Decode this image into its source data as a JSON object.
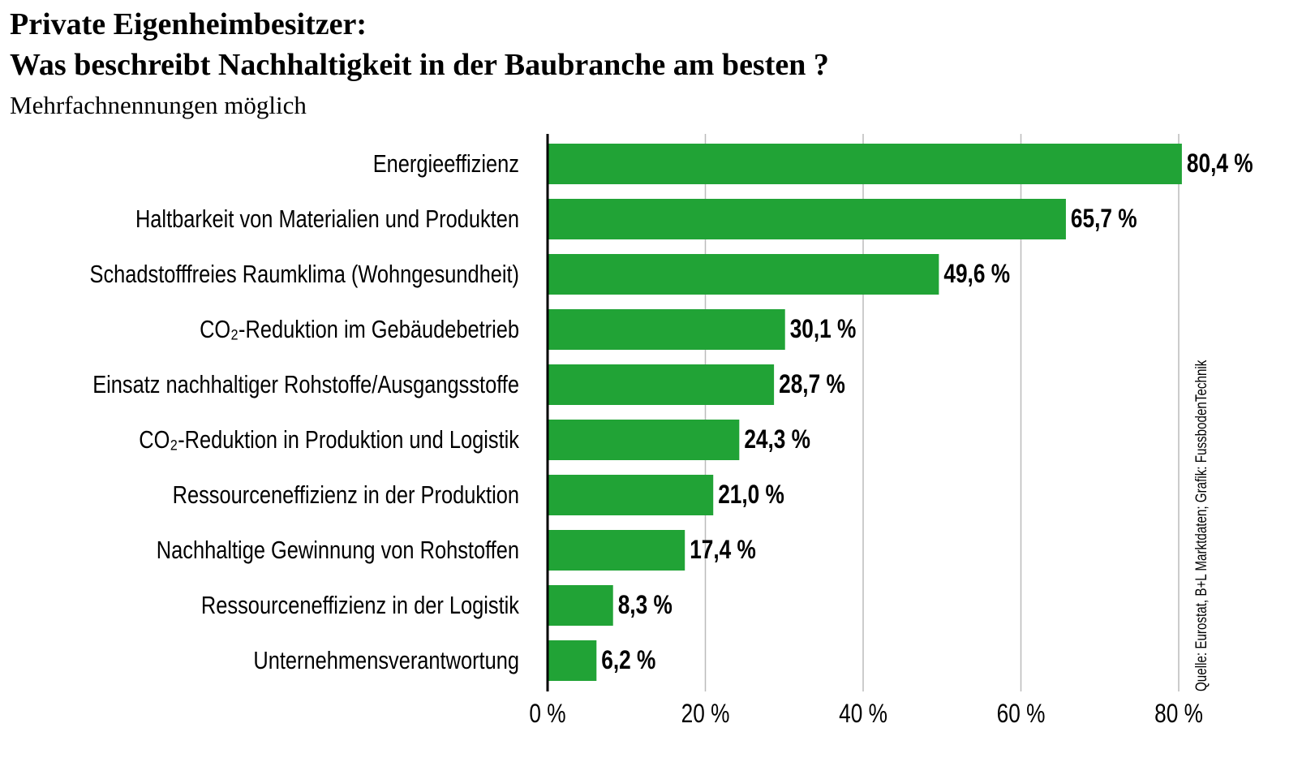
{
  "chart_data": {
    "type": "bar",
    "orientation": "horizontal",
    "title": [
      "Private Eigenheimbesitzer:",
      "Was beschreibt Nachhaltigkeit in der Baubranche am besten ?"
    ],
    "subtitle": "Mehrfachnennungen möglich",
    "source": "Quelle: Eurostat, B+L Marktdaten; Grafik: FussbodenTechnik",
    "categories": [
      "Energieeffizienz",
      "Haltbarkeit von Materialien und Produkten",
      "Schadstofffreies Raumklima (Wohngesundheit)",
      "CO₂-Reduktion im Gebäudebetrieb",
      "Einsatz nachhaltiger Rohstoffe/Ausgangsstoffe",
      "CO₂-Reduktion in Produktion und Logistik",
      "Ressourceneffizienz in der Produktion",
      "Nachhaltige Gewinnung von Rohstoffen",
      "Ressourceneffizienz in der Logistik",
      "Unternehmensverantwortung"
    ],
    "values": [
      80.4,
      65.7,
      49.6,
      30.1,
      28.7,
      24.3,
      21.0,
      17.4,
      8.3,
      6.2
    ],
    "value_labels": [
      "80,4 %",
      "65,7 %",
      "49,6 %",
      "30,1 %",
      "28,7 %",
      "24,3 %",
      "21,0 %",
      "17,4 %",
      "8,3 %",
      "6,2 %"
    ],
    "color": "#21a336",
    "xlim": [
      0,
      80
    ],
    "xticks": [
      {
        "value": 0,
        "label": "0 %"
      },
      {
        "value": 20,
        "label": "20 %"
      },
      {
        "value": 40,
        "label": "40 %"
      },
      {
        "value": 60,
        "label": "60 %"
      },
      {
        "value": 80,
        "label": "80 %"
      }
    ],
    "grid": true
  }
}
